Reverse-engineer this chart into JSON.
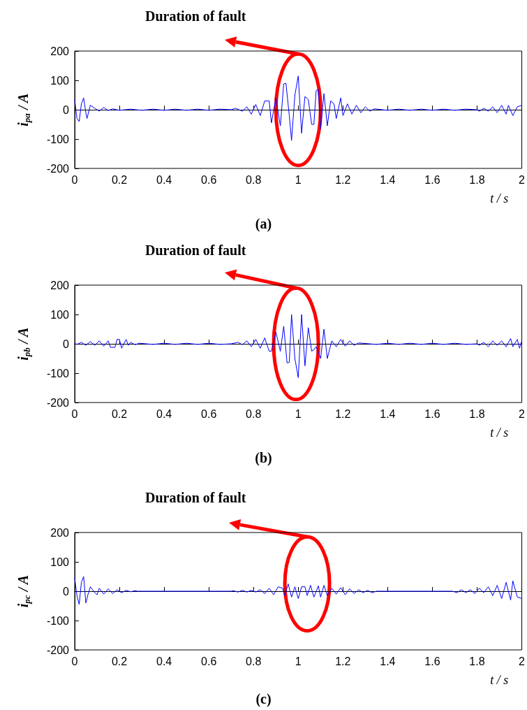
{
  "chart_data": [
    {
      "type": "line",
      "title": "Duration of fault",
      "xlabel": "t / s",
      "ylabel": "i$_{pa}$ / A",
      "annotations": [
        "(a)"
      ],
      "xlim": [
        0,
        2
      ],
      "xticks": [
        0,
        0.2,
        0.4,
        0.6,
        0.8,
        1,
        1.2,
        1.4,
        1.6,
        1.8,
        2
      ],
      "ylim": [
        -200,
        200
      ],
      "yticks": [
        -200,
        -100,
        0,
        100,
        200
      ],
      "series": [
        {
          "color": "#0000ff",
          "x": [
            0,
            0.01,
            0.02,
            0.03,
            0.04,
            0.05,
            0.055,
            0.07,
            0.09,
            0.11,
            0.13,
            0.15,
            0.17,
            0.2,
            0.25,
            0.3,
            0.35,
            0.4,
            0.45,
            0.5,
            0.55,
            0.6,
            0.65,
            0.7,
            0.72,
            0.75,
            0.77,
            0.79,
            0.81,
            0.83,
            0.85,
            0.87,
            0.88,
            0.9,
            0.92,
            0.935,
            0.945,
            0.96,
            0.97,
            0.985,
            1.0,
            1.015,
            1.03,
            1.045,
            1.06,
            1.07,
            1.08,
            1.09,
            1.1,
            1.115,
            1.13,
            1.145,
            1.16,
            1.17,
            1.19,
            1.2,
            1.22,
            1.24,
            1.26,
            1.28,
            1.3,
            1.32,
            1.34,
            1.4,
            1.45,
            1.5,
            1.55,
            1.6,
            1.65,
            1.7,
            1.75,
            1.8,
            1.81,
            1.83,
            1.85,
            1.87,
            1.89,
            1.91,
            1.93,
            1.94,
            1.96,
            1.98,
            2.0
          ],
          "values": [
            35,
            -30,
            -40,
            20,
            40,
            -10,
            -30,
            15,
            5,
            -5,
            8,
            -3,
            3,
            -2,
            2,
            -2,
            2,
            -2,
            2,
            -2,
            2,
            -2,
            2,
            0,
            5,
            -5,
            10,
            -15,
            18,
            -20,
            30,
            30,
            -45,
            40,
            -55,
            88,
            90,
            -20,
            -105,
            50,
            115,
            -80,
            45,
            35,
            -50,
            -50,
            65,
            70,
            -65,
            55,
            -55,
            30,
            20,
            -30,
            40,
            -20,
            20,
            -15,
            15,
            -10,
            10,
            -5,
            3,
            -2,
            2,
            -2,
            2,
            -2,
            2,
            -2,
            2,
            0,
            -5,
            5,
            -5,
            10,
            -10,
            15,
            -15,
            15,
            -20,
            10,
            15
          ]
        }
      ]
    },
    {
      "type": "line",
      "title": "Duration of fault",
      "xlabel": "t / s",
      "ylabel": "i$_{pb}$ / A",
      "annotations": [
        "(b)"
      ],
      "xlim": [
        0,
        2
      ],
      "xticks": [
        0,
        0.2,
        0.4,
        0.6,
        0.8,
        1,
        1.2,
        1.4,
        1.6,
        1.8,
        2
      ],
      "ylim": [
        -200,
        200
      ],
      "yticks": [
        -200,
        -100,
        0,
        100,
        200
      ],
      "series": [
        {
          "color": "#0000ff",
          "x": [
            0,
            0.01,
            0.03,
            0.05,
            0.07,
            0.09,
            0.11,
            0.13,
            0.15,
            0.16,
            0.18,
            0.19,
            0.2,
            0.21,
            0.23,
            0.24,
            0.25,
            0.27,
            0.29,
            0.35,
            0.4,
            0.45,
            0.5,
            0.55,
            0.6,
            0.65,
            0.7,
            0.73,
            0.75,
            0.77,
            0.79,
            0.81,
            0.83,
            0.85,
            0.87,
            0.88,
            0.9,
            0.92,
            0.935,
            0.95,
            0.96,
            0.97,
            0.985,
            1.0,
            1.015,
            1.03,
            1.045,
            1.06,
            1.07,
            1.08,
            1.1,
            1.115,
            1.13,
            1.15,
            1.17,
            1.19,
            1.21,
            1.23,
            1.25,
            1.27,
            1.35,
            1.4,
            1.45,
            1.5,
            1.55,
            1.6,
            1.65,
            1.7,
            1.75,
            1.8,
            1.81,
            1.83,
            1.85,
            1.87,
            1.89,
            1.91,
            1.93,
            1.95,
            1.96,
            1.98,
            1.99,
            2.0
          ],
          "values": [
            2,
            -2,
            5,
            -5,
            8,
            -5,
            10,
            -8,
            10,
            -12,
            -12,
            15,
            15,
            -15,
            15,
            -5,
            5,
            -3,
            2,
            -2,
            2,
            -2,
            2,
            -2,
            2,
            -2,
            0,
            5,
            -3,
            10,
            -10,
            15,
            -15,
            20,
            -25,
            -25,
            40,
            -25,
            60,
            -65,
            -63,
            100,
            -50,
            -115,
            100,
            -75,
            55,
            -25,
            -20,
            -10,
            -50,
            50,
            -50,
            10,
            -10,
            15,
            -8,
            10,
            -5,
            3,
            -2,
            2,
            -2,
            2,
            -2,
            2,
            -2,
            2,
            -2,
            0,
            -5,
            5,
            -10,
            10,
            -5,
            10,
            -10,
            18,
            -10,
            15,
            -15,
            10
          ]
        }
      ]
    },
    {
      "type": "line",
      "title": "Duration of fault",
      "xlabel": "t / s",
      "ylabel": "i$_{pc}$ / A",
      "annotations": [
        "(c)"
      ],
      "xlim": [
        0,
        2
      ],
      "xticks": [
        0,
        0.2,
        0.4,
        0.6,
        0.8,
        1,
        1.2,
        1.4,
        1.6,
        1.8,
        2
      ],
      "ylim": [
        -200,
        200
      ],
      "yticks": [
        -200,
        -100,
        0,
        100,
        200
      ],
      "series": [
        {
          "color": "#0000ff",
          "x": [
            0,
            0.01,
            0.02,
            0.03,
            0.04,
            0.05,
            0.06,
            0.07,
            0.09,
            0.1,
            0.11,
            0.13,
            0.15,
            0.17,
            0.19,
            0.21,
            0.23,
            0.25,
            0.27,
            0.28,
            0.7,
            0.71,
            0.73,
            0.75,
            0.77,
            0.79,
            0.81,
            0.83,
            0.85,
            0.87,
            0.89,
            0.91,
            0.93,
            0.94,
            0.955,
            0.97,
            0.985,
            1.0,
            1.015,
            1.03,
            1.04,
            1.055,
            1.07,
            1.09,
            1.1,
            1.115,
            1.13,
            1.15,
            1.17,
            1.19,
            1.21,
            1.23,
            1.25,
            1.27,
            1.29,
            1.31,
            1.33,
            1.35,
            1.69,
            1.71,
            1.73,
            1.75,
            1.77,
            1.79,
            1.81,
            1.83,
            1.85,
            1.87,
            1.89,
            1.91,
            1.93,
            1.95,
            1.96,
            1.98,
            2.0
          ],
          "values": [
            45,
            -15,
            -45,
            30,
            50,
            -40,
            -10,
            15,
            -5,
            -12,
            10,
            -10,
            8,
            -8,
            5,
            -5,
            3,
            -2,
            2,
            0,
            0,
            2,
            -3,
            3,
            -3,
            3,
            -3,
            5,
            -8,
            10,
            -12,
            15,
            10,
            -15,
            25,
            -20,
            15,
            -25,
            15,
            15,
            -15,
            20,
            -20,
            18,
            -20,
            20,
            -15,
            10,
            -10,
            12,
            -12,
            8,
            -8,
            5,
            -5,
            3,
            -5,
            0,
            0,
            -5,
            5,
            -5,
            5,
            -8,
            10,
            -5,
            15,
            -15,
            20,
            -25,
            30,
            -30,
            35,
            -20,
            -25
          ]
        }
      ]
    }
  ]
}
